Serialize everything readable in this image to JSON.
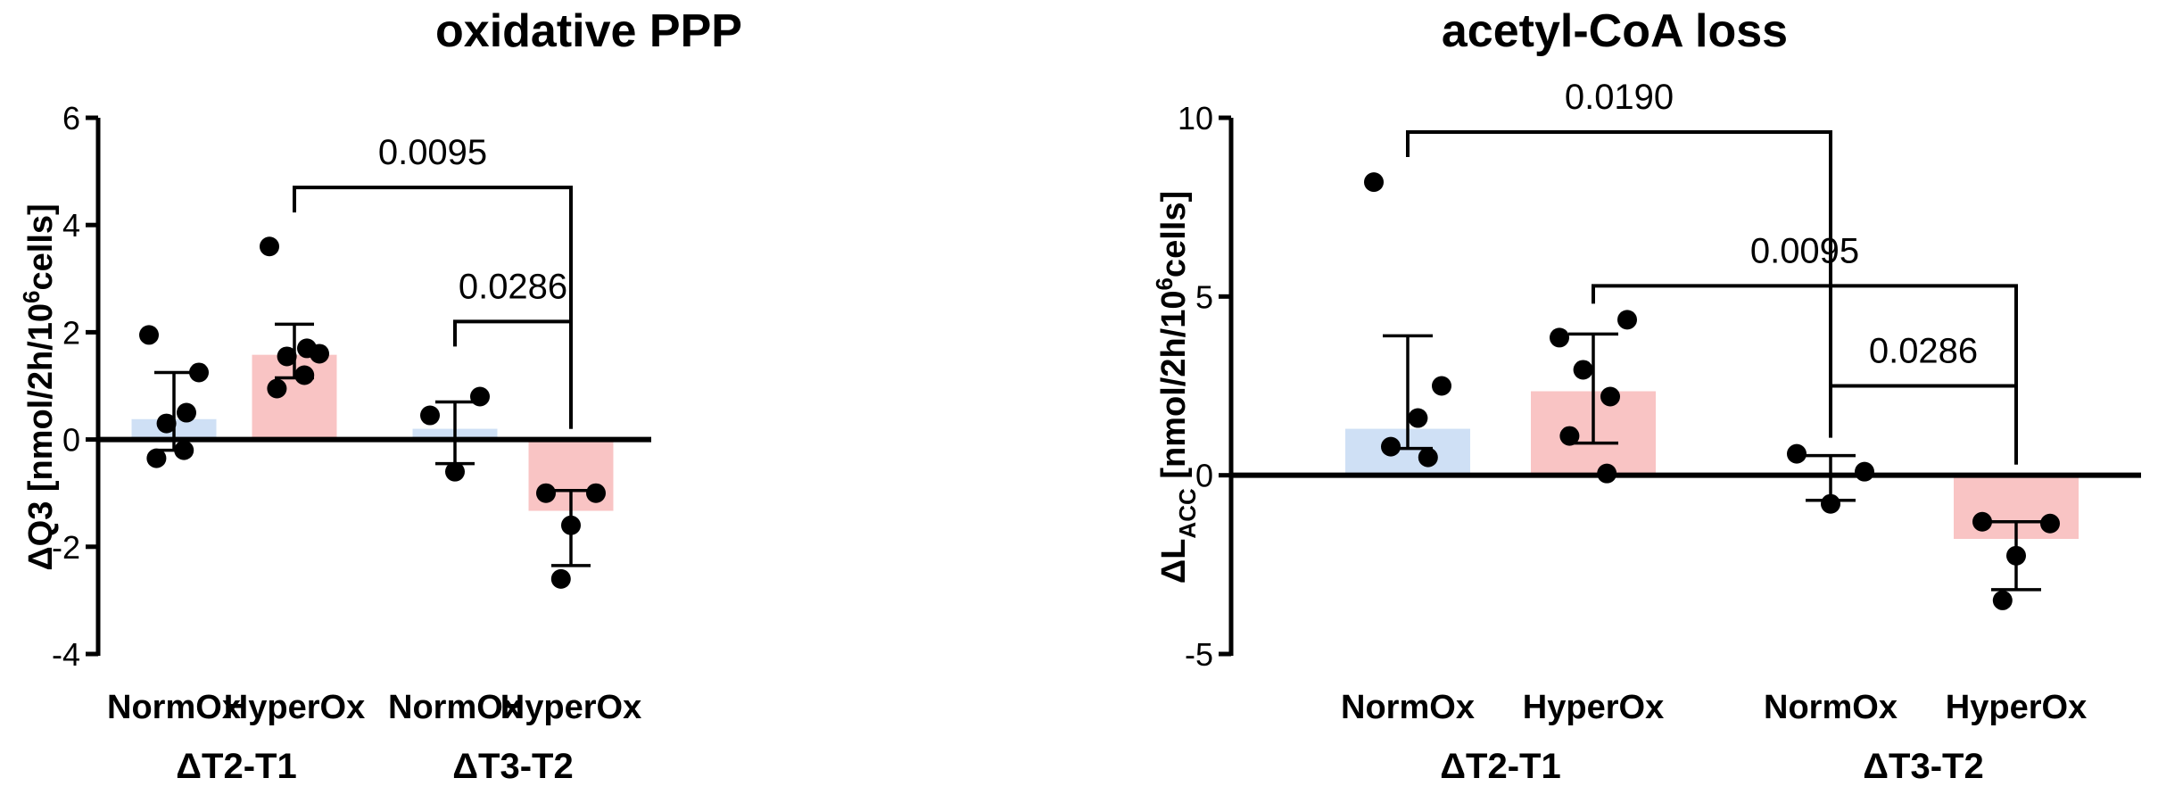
{
  "chart_data": [
    {
      "type": "bar",
      "title": "oxidative PPP",
      "ylabel": {
        "main": "ΔQ3 [nmol/2h/10",
        "sup": "6",
        "tail": "cells]"
      },
      "ylim": [
        -4,
        6
      ],
      "yticks": [
        6,
        4,
        2,
        0,
        -2,
        -4
      ],
      "groups": [
        "ΔT2-T1",
        "ΔT3-T2"
      ],
      "categories": [
        "NormOx",
        "HyperOx",
        "NormOx",
        "HyperOx"
      ],
      "colors": [
        "#cfe0f5",
        "#f9c4c4",
        "#cfe0f5",
        "#f9c4c4"
      ],
      "means": [
        0.38,
        1.58,
        0.2,
        -1.33
      ],
      "errors": [
        [
          -0.2,
          1.25
        ],
        [
          1.15,
          2.15
        ],
        [
          -0.45,
          0.7
        ],
        [
          -2.35,
          -0.95
        ]
      ],
      "points": [
        [
          1.95,
          1.25,
          0.3,
          0.5,
          -0.35,
          -0.2
        ],
        [
          3.6,
          1.6,
          1.55,
          1.7,
          0.95,
          1.2
        ],
        [
          0.45,
          0.8,
          -0.6
        ],
        [
          -1.0,
          -1.0,
          -1.6,
          -2.6
        ]
      ],
      "comparisons": [
        {
          "from": 1,
          "to": 3,
          "y": 4.7,
          "label": "0.0095"
        },
        {
          "from": 2,
          "to": 3,
          "y": 2.2,
          "label": "0.0286"
        }
      ]
    },
    {
      "type": "bar",
      "title": "acetyl-CoA loss",
      "ylabel": {
        "main": "ΔL",
        "sub": "ACC",
        "mid": " [nmol/2h/10",
        "sup": "6",
        "tail": "cells]"
      },
      "ylim": [
        -5,
        10
      ],
      "yticks": [
        10,
        5,
        0,
        -5
      ],
      "groups": [
        "ΔT2-T1",
        "ΔT3-T2"
      ],
      "categories": [
        "NormOx",
        "HyperOx",
        "NormOx",
        "HyperOx"
      ],
      "colors": [
        "#cfe0f5",
        "#f9c4c4",
        "#cfe0f5",
        "#f9c4c4"
      ],
      "means": [
        1.3,
        2.35,
        0,
        -1.78
      ],
      "errors": [
        [
          0.75,
          3.9
        ],
        [
          0.9,
          3.95
        ],
        [
          -0.7,
          0.55
        ],
        [
          -3.2,
          -1.3
        ]
      ],
      "points": [
        [
          8.2,
          2.5,
          1.6,
          0.8,
          0.5
        ],
        [
          3.85,
          4.35,
          2.95,
          2.2,
          1.1,
          0.05
        ],
        [
          0.6,
          0.1,
          -0.8
        ],
        [
          -1.3,
          -1.35,
          -2.25,
          -3.5
        ]
      ],
      "comparisons": [
        {
          "from": 0,
          "to": 2,
          "y": 9.6,
          "label": "0.0190"
        },
        {
          "from": 1,
          "to": 3,
          "y": 5.3,
          "label": "0.0095"
        },
        {
          "from": 2,
          "to": 3,
          "y": 2.5,
          "label": "0.0286"
        }
      ]
    }
  ]
}
